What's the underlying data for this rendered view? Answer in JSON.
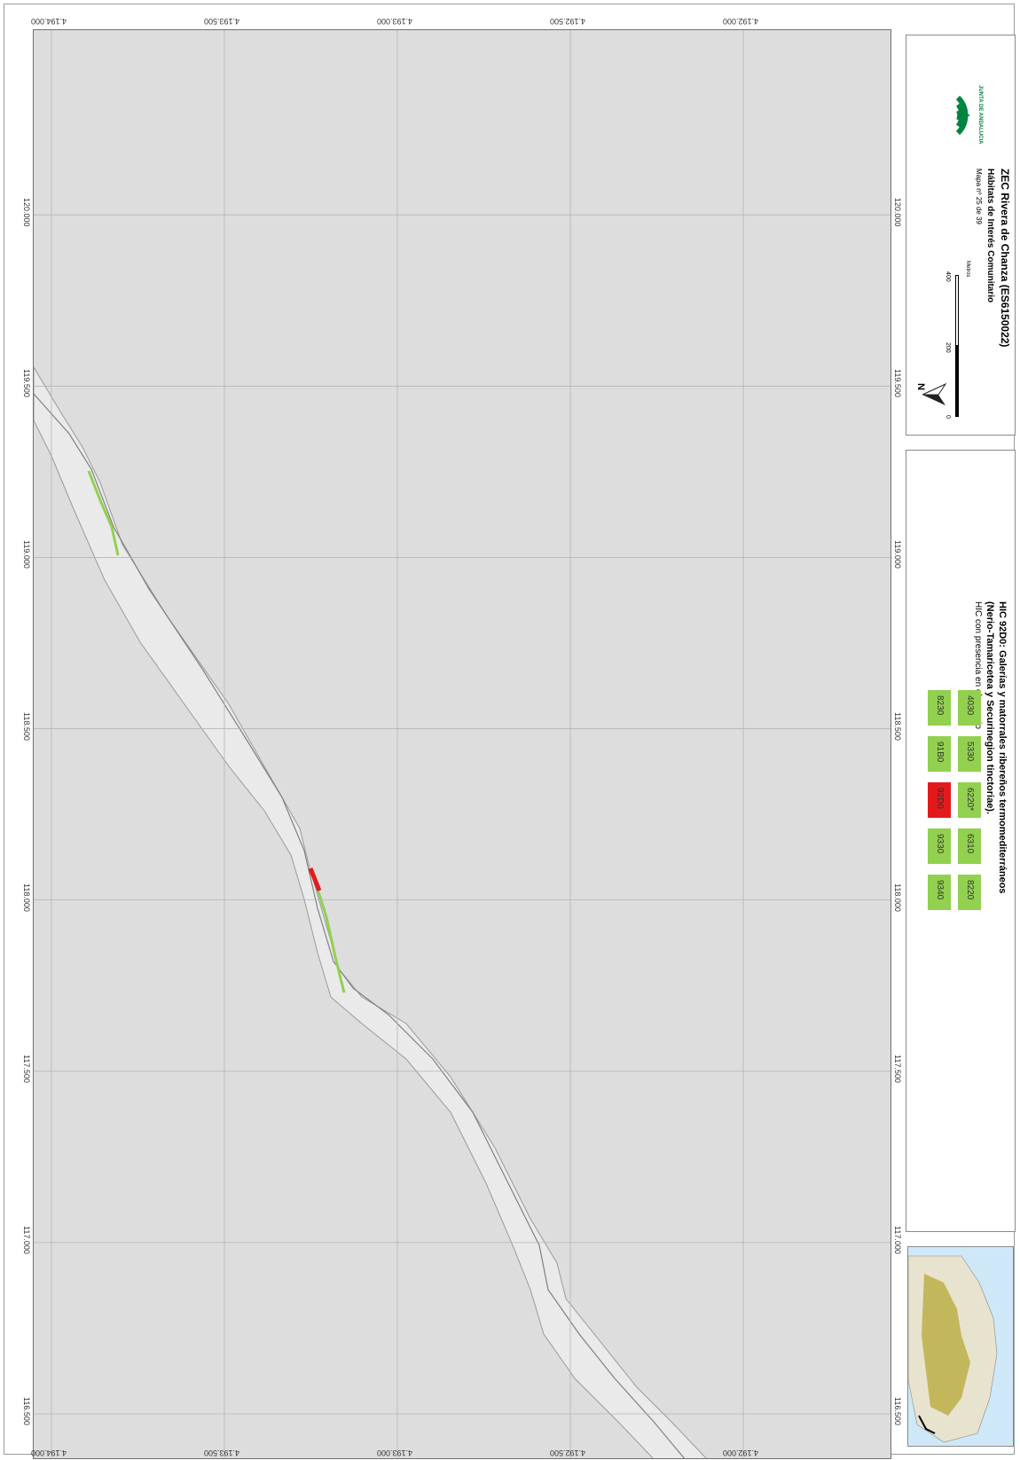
{
  "map": {
    "x_ticks": [
      "116.500",
      "117.000",
      "117.500",
      "118.000",
      "118.500",
      "119.000",
      "119.500",
      "120.000"
    ],
    "y_ticks": [
      "4.194.000",
      "4.193.500",
      "4.193.000",
      "4.192.500",
      "4.192.000"
    ]
  },
  "title_block": {
    "title": "ZEC Rivera de Chanza (ES6150022)",
    "subtitle": "Hábitats de Interés Comunitario",
    "map_number": "Mapa nº 25 de 39",
    "north_label": "N",
    "scale_labels": [
      "0",
      "200",
      "400"
    ],
    "scale_unit": "Metros",
    "logo_text": "JUNTA DE ANDALUCIA"
  },
  "legend": {
    "heading": "HIC 92D0: Galerías y matorrales ribereños termomediterráneos",
    "heading_2": "(Nerio-Tamaricetea y Securinegion tinctoriae).",
    "subheading": "HIC con presencia en el espacio",
    "codes": [
      "4030",
      "5330",
      "6220*",
      "6310",
      "8220",
      "8230",
      "91B0",
      "92D0",
      "9330",
      "9340"
    ],
    "highlighted": "92D0",
    "colors": {
      "present": "#92d050",
      "highlight": "#e31a1c",
      "basemap": "#dddddd",
      "zec": "#e8e8e8"
    }
  }
}
